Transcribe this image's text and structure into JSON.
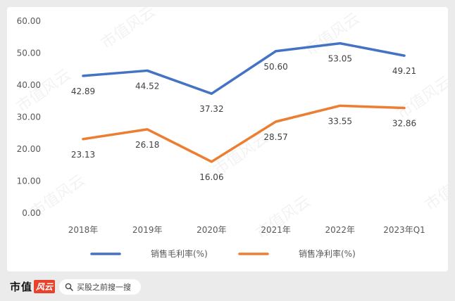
{
  "chart_data": {
    "type": "line",
    "categories": [
      "2018年",
      "2019年",
      "2020年",
      "2021年",
      "2022年",
      "2023年Q1"
    ],
    "series": [
      {
        "name": "销售毛利率(%)",
        "color": "#4472c4",
        "values": [
          42.89,
          44.52,
          37.32,
          50.6,
          53.05,
          49.21
        ],
        "labels": [
          "42.89",
          "44.52",
          "37.32",
          "50.60",
          "53.05",
          "49.21"
        ]
      },
      {
        "name": "销售净利率(%)",
        "color": "#ed7d31",
        "values": [
          23.13,
          26.18,
          16.06,
          28.57,
          33.55,
          32.86
        ],
        "labels": [
          "23.13",
          "26.18",
          "16.06",
          "28.57",
          "33.55",
          "32.86"
        ]
      }
    ],
    "ylim": [
      0,
      60
    ],
    "yticks": [
      "0.00",
      "10.00",
      "20.00",
      "30.00",
      "40.00",
      "50.00",
      "60.00"
    ],
    "grid": false,
    "legend": "bottom"
  },
  "footer": {
    "brand_text": "市值",
    "brand_badge": "风云",
    "search_placeholder": "买股之前搜一搜"
  },
  "watermark": "市值风云"
}
